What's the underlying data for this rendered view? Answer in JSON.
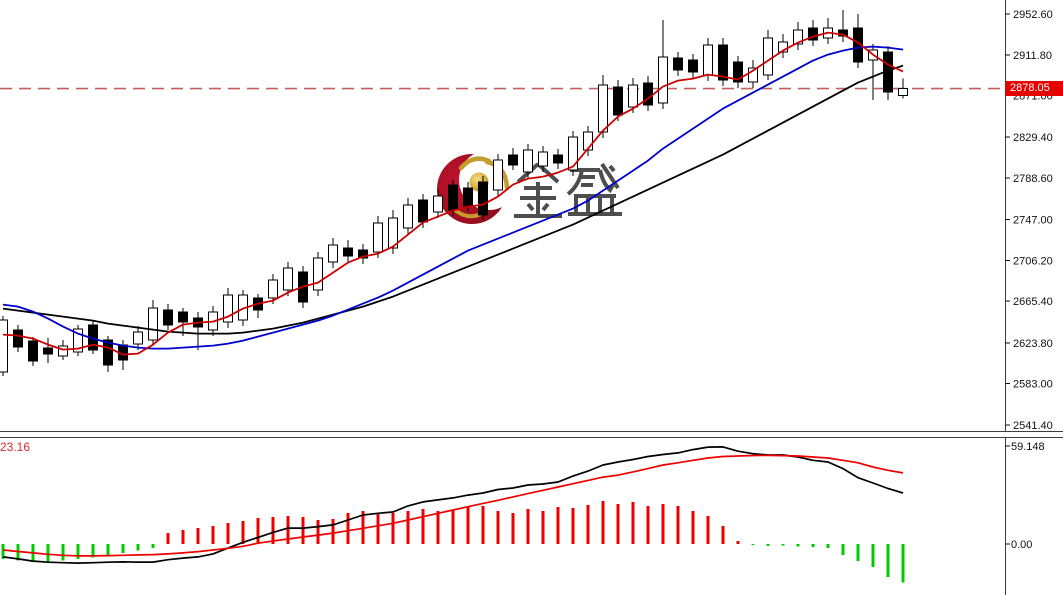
{
  "watermark": {
    "text": "金 盛",
    "crescent_color": "#a30d1e",
    "gold_color": "#c69c2e",
    "text_color": "#3f3f3f"
  },
  "chart_data": [
    {
      "type": "candlestick",
      "title": "",
      "axis": {
        "side": "right",
        "tick_labels": [
          "2952.60",
          "2911.80",
          "2871.00",
          "2829.40",
          "2788.60",
          "2747.00",
          "2706.20",
          "2665.40",
          "2623.80",
          "2583.00",
          "2541.40"
        ],
        "current_price_label": "2878.05"
      },
      "current_price": 2878.05,
      "candles_ohlc": [
        [
          2594.6,
          2650.6,
          2590.6,
          2646.6
        ],
        [
          2636.6,
          2641.6,
          2614.6,
          2619.6
        ],
        [
          2625.6,
          2629.6,
          2600.6,
          2605.6
        ],
        [
          2618.6,
          2628.6,
          2603.6,
          2612.6
        ],
        [
          2610.6,
          2626.6,
          2606.6,
          2620.6
        ],
        [
          2614.6,
          2641.6,
          2610.6,
          2637.6
        ],
        [
          2641.6,
          2645.6,
          2612.6,
          2616.6
        ],
        [
          2626.6,
          2630.6,
          2594.6,
          2601.6
        ],
        [
          2621.6,
          2626.6,
          2596.6,
          2606.6
        ],
        [
          2622.6,
          2640.6,
          2616.6,
          2634.6
        ],
        [
          2626.6,
          2666.6,
          2620.6,
          2658.6
        ],
        [
          2656.6,
          2662.6,
          2636.6,
          2641.6
        ],
        [
          2654.6,
          2658.6,
          2630.6,
          2644.6
        ],
        [
          2648.6,
          2654.6,
          2616.6,
          2639.6
        ],
        [
          2636.6,
          2660.6,
          2630.6,
          2654.6
        ],
        [
          2644.6,
          2678.6,
          2638.6,
          2671.6
        ],
        [
          2646.6,
          2676.6,
          2640.6,
          2671.6
        ],
        [
          2668.6,
          2672.6,
          2648.6,
          2656.6
        ],
        [
          2668.6,
          2692.6,
          2662.6,
          2686.6
        ],
        [
          2676.6,
          2704.6,
          2670.6,
          2698.6
        ],
        [
          2694.6,
          2700.6,
          2658.6,
          2664.6
        ],
        [
          2676.6,
          2714.6,
          2670.6,
          2708.6
        ],
        [
          2704.6,
          2728.6,
          2698.6,
          2721.6
        ],
        [
          2718.6,
          2726.6,
          2704.6,
          2710.6
        ],
        [
          2716.6,
          2722.6,
          2702.6,
          2708.6
        ],
        [
          2714.6,
          2750.6,
          2708.6,
          2743.6
        ],
        [
          2718.6,
          2756.6,
          2712.6,
          2748.6
        ],
        [
          2738.6,
          2768.6,
          2732.6,
          2761.6
        ],
        [
          2766.6,
          2772.6,
          2738.6,
          2744.6
        ],
        [
          2754.6,
          2776.6,
          2748.6,
          2770.6
        ],
        [
          2781.6,
          2786.6,
          2750.6,
          2756.6
        ],
        [
          2778.6,
          2784.6,
          2754.6,
          2760.6
        ],
        [
          2784.6,
          2790.6,
          2746.6,
          2751.6
        ],
        [
          2776.6,
          2812.6,
          2770.6,
          2806.6
        ],
        [
          2811.6,
          2818.6,
          2796.6,
          2801.6
        ],
        [
          2794.6,
          2822.6,
          2788.6,
          2816.6
        ],
        [
          2800.6,
          2820.6,
          2794.6,
          2814.6
        ],
        [
          2811.6,
          2817.6,
          2797.6,
          2803.6
        ],
        [
          2796.6,
          2835.6,
          2790.6,
          2829.6
        ],
        [
          2816.6,
          2840.6,
          2810.6,
          2834.6
        ],
        [
          2834.6,
          2891.6,
          2828.6,
          2881.6
        ],
        [
          2879.6,
          2886.6,
          2845.6,
          2851.6
        ],
        [
          2859.6,
          2888.6,
          2853.6,
          2881.6
        ],
        [
          2883.6,
          2890.6,
          2855.6,
          2861.6
        ],
        [
          2863.6,
          2946.6,
          2857.6,
          2909.6
        ],
        [
          2908.6,
          2914.6,
          2890.6,
          2896.6
        ],
        [
          2906.6,
          2912.6,
          2888.6,
          2894.6
        ],
        [
          2891.6,
          2928.6,
          2885.6,
          2921.6
        ],
        [
          2921.6,
          2928.6,
          2880.6,
          2886.6
        ],
        [
          2904.6,
          2910.6,
          2878.6,
          2884.6
        ],
        [
          2884.6,
          2906.6,
          2878.6,
          2898.6
        ],
        [
          2891.6,
          2936.6,
          2886.6,
          2928.6
        ],
        [
          2914.6,
          2932.6,
          2908.6,
          2924.6
        ],
        [
          2922.6,
          2944.6,
          2916.6,
          2936.6
        ],
        [
          2938.6,
          2946.6,
          2920.6,
          2926.6
        ],
        [
          2928.6,
          2948.6,
          2922.6,
          2938.6
        ],
        [
          2936.6,
          2956.6,
          2924.6,
          2930.6
        ],
        [
          2938.6,
          2952.6,
          2898.6,
          2904.6
        ],
        [
          2906.6,
          2922.6,
          2866.6,
          2916.6
        ],
        [
          2914.6,
          2920.6,
          2866.6,
          2874.6
        ],
        [
          2871.0,
          2888.0,
          2868.0,
          2878.05
        ]
      ],
      "overlays": {
        "ma_fast_red": [
          2632,
          2631,
          2628,
          2622,
          2617,
          2618,
          2622,
          2619,
          2612,
          2613,
          2622,
          2634,
          2642,
          2644,
          2645,
          2650,
          2658,
          2663,
          2666,
          2674,
          2680,
          2684,
          2694,
          2704,
          2710,
          2713,
          2720,
          2732,
          2744,
          2750,
          2756,
          2760,
          2762,
          2770,
          2782,
          2788,
          2790,
          2794,
          2800,
          2818,
          2836,
          2850,
          2858,
          2868,
          2880,
          2886,
          2888,
          2892,
          2890,
          2887,
          2896,
          2906,
          2916,
          2924,
          2930,
          2934,
          2932,
          2924,
          2912,
          2902,
          2895
        ],
        "ma_mid_blue": [
          2662,
          2660,
          2655,
          2648,
          2640,
          2633,
          2628,
          2624,
          2621,
          2619,
          2618,
          2618,
          2619,
          2620,
          2621,
          2623,
          2626,
          2630,
          2634,
          2638,
          2642,
          2646,
          2651,
          2657,
          2663,
          2669,
          2676,
          2684,
          2692,
          2700,
          2708,
          2716,
          2722,
          2728,
          2734,
          2740,
          2746,
          2752,
          2758,
          2766,
          2776,
          2786,
          2796,
          2806,
          2818,
          2828,
          2838,
          2848,
          2858,
          2866,
          2874,
          2882,
          2890,
          2898,
          2906,
          2912,
          2916,
          2919,
          2920,
          2919,
          2917
        ],
        "ma_slow_black": [
          2658,
          2656,
          2654,
          2652,
          2650,
          2648,
          2646,
          2643,
          2641,
          2639,
          2637,
          2635,
          2634,
          2633,
          2633,
          2633,
          2634,
          2636,
          2638,
          2641,
          2644,
          2648,
          2652,
          2656,
          2660,
          2665,
          2670,
          2676,
          2682,
          2688,
          2694,
          2700,
          2706,
          2712,
          2718,
          2724,
          2730,
          2736,
          2742,
          2749,
          2756,
          2763,
          2770,
          2777,
          2784,
          2791,
          2798,
          2805,
          2812,
          2820,
          2828,
          2836,
          2844,
          2852,
          2860,
          2868,
          2876,
          2884,
          2890,
          2896,
          2901
        ]
      },
      "colors": {
        "bull_fill": "#ffffff",
        "bear_fill": "#000000",
        "outline": "#000000",
        "ma_fast": "#cc0000",
        "ma_mid": "#0000cc",
        "ma_slow": "#000000",
        "price_line": "#c65f5f",
        "badge_bg": "#e60000",
        "badge_text": "#ffffff"
      }
    },
    {
      "type": "macd",
      "value_label": "-23.16",
      "axis_tick_labels": [
        "59.148",
        "0.00"
      ],
      "histogram": [
        -9,
        -10,
        -11,
        -10.5,
        -10,
        -9,
        -8,
        -7,
        -5.5,
        -4,
        -2.5,
        6.6,
        8.5,
        9.7,
        10.9,
        12.7,
        13.9,
        15.7,
        16.3,
        16.9,
        16.3,
        14.5,
        15.1,
        18.7,
        19.9,
        18.1,
        18.7,
        19.9,
        21.1,
        19.9,
        20.5,
        22.3,
        22.9,
        19.9,
        18.7,
        21.1,
        19.9,
        22.3,
        21.7,
        23.5,
        25.9,
        24.1,
        25.3,
        22.9,
        24.1,
        22.9,
        19.9,
        16.9,
        10.9,
        1.8,
        -0.6,
        -1.2,
        -0.8,
        -1.5,
        -1.8,
        -2.4,
        -6.6,
        -10.3,
        -13.9,
        -19.9,
        -23.16
      ],
      "macd_line": [
        -7.8,
        -9,
        -10.3,
        -11,
        -11.3,
        -11.5,
        -11.3,
        -11,
        -10.8,
        -10.9,
        -10.9,
        -9.5,
        -8.5,
        -7.8,
        -6,
        -2.5,
        1,
        4,
        7,
        9.6,
        9.6,
        10.5,
        11.5,
        14.5,
        17.5,
        18.5,
        19.3,
        23,
        25.4,
        26.6,
        27.8,
        29.5,
        30.8,
        32.9,
        33.8,
        35.6,
        36.2,
        37.4,
        41,
        44,
        47.7,
        49.5,
        51,
        52.8,
        54,
        55,
        57,
        58.5,
        58.6,
        56,
        54.5,
        53.7,
        53.7,
        52.5,
        50.5,
        49.5,
        45.5,
        40,
        36.8,
        33.5,
        30.8
      ],
      "signal_line": [
        -3.6,
        -4.5,
        -5.4,
        -6.2,
        -6.8,
        -7.2,
        -7.2,
        -7,
        -6.8,
        -6.6,
        -6.4,
        -6,
        -5.4,
        -4.6,
        -3.6,
        -2.6,
        -1.4,
        0.5,
        1.8,
        3,
        4.2,
        5.4,
        6.6,
        8,
        9.5,
        11,
        12.5,
        14.5,
        16.5,
        18.5,
        20.5,
        22.5,
        24.5,
        26.4,
        28.4,
        30.4,
        32.4,
        34.4,
        36.4,
        38.4,
        40.4,
        41.6,
        43.5,
        45.5,
        47.7,
        49,
        50.5,
        51.9,
        52.8,
        53.1,
        53.4,
        53.5,
        53.3,
        53.1,
        52.5,
        51.9,
        50.5,
        49,
        46.5,
        44.5,
        42.9
      ],
      "colors": {
        "hist_up": "#ee0000",
        "hist_down": "#00cc00",
        "macd": "#000000",
        "signal": "#ee0000",
        "label": "#dd2a2a"
      }
    }
  ]
}
